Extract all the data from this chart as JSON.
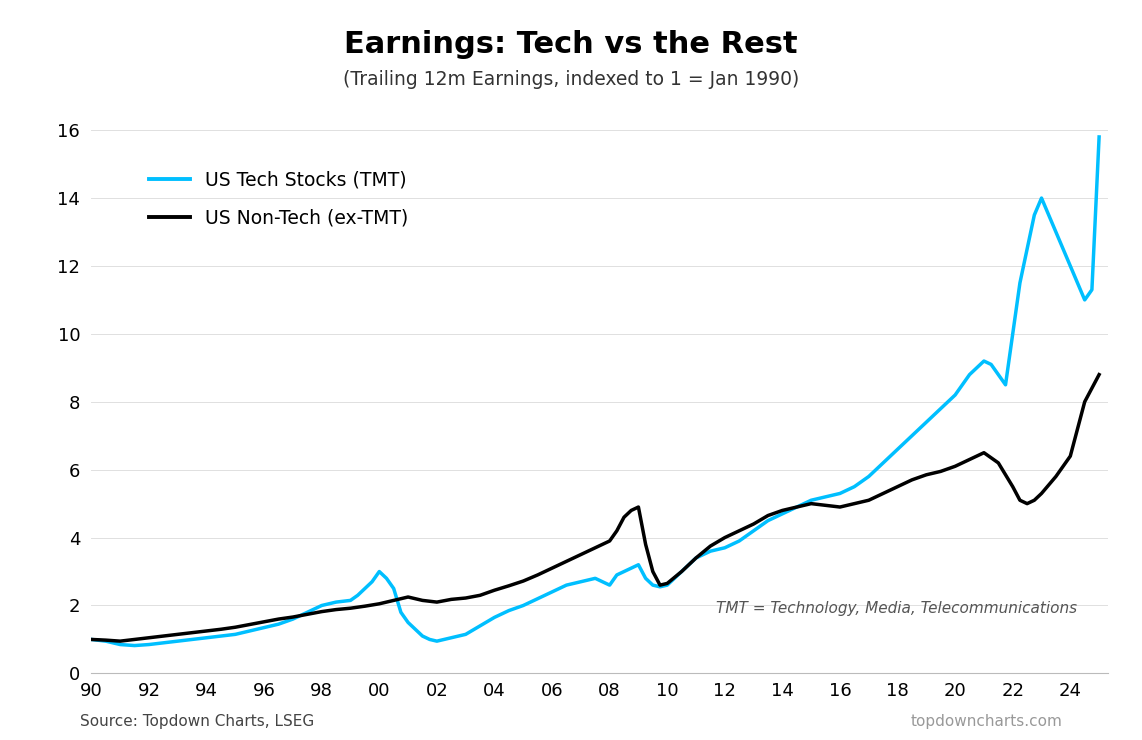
{
  "title": "Earnings: Tech vs the Rest",
  "subtitle": "(Trailing 12m Earnings, indexed to 1 = Jan 1990)",
  "source_left": "Source: Topdown Charts, LSEG",
  "source_right": "topdowncharts.com",
  "annotation": "TMT = Technology, Media, Telecommunications",
  "legend_tech": "US Tech Stocks (TMT)",
  "legend_nontech": "US Non-Tech (ex-TMT)",
  "color_tech": "#00BFFF",
  "color_nontech": "#000000",
  "ylim": [
    0,
    17
  ],
  "yticks": [
    0,
    2,
    4,
    6,
    8,
    10,
    12,
    14,
    16
  ],
  "xlim_start": 1990.0,
  "xlim_end": 2025.3,
  "xtick_labels": [
    "90",
    "92",
    "94",
    "96",
    "98",
    "00",
    "02",
    "04",
    "06",
    "08",
    "10",
    "12",
    "14",
    "16",
    "18",
    "20",
    "22",
    "24"
  ],
  "xtick_positions": [
    1990,
    1992,
    1994,
    1996,
    1998,
    2000,
    2002,
    2004,
    2006,
    2008,
    2010,
    2012,
    2014,
    2016,
    2018,
    2020,
    2022,
    2024
  ],
  "tech_x": [
    1990.0,
    1990.5,
    1991.0,
    1991.5,
    1992.0,
    1992.5,
    1993.0,
    1993.5,
    1994.0,
    1994.5,
    1995.0,
    1995.5,
    1996.0,
    1996.5,
    1997.0,
    1997.5,
    1998.0,
    1998.5,
    1999.0,
    1999.25,
    1999.5,
    1999.75,
    2000.0,
    2000.25,
    2000.5,
    2000.75,
    2001.0,
    2001.25,
    2001.5,
    2001.75,
    2002.0,
    2002.25,
    2002.5,
    2002.75,
    2003.0,
    2003.5,
    2004.0,
    2004.5,
    2005.0,
    2005.5,
    2006.0,
    2006.5,
    2007.0,
    2007.5,
    2008.0,
    2008.25,
    2008.5,
    2008.75,
    2009.0,
    2009.25,
    2009.5,
    2009.75,
    2010.0,
    2010.5,
    2011.0,
    2011.5,
    2012.0,
    2012.5,
    2013.0,
    2013.5,
    2014.0,
    2014.5,
    2015.0,
    2015.5,
    2016.0,
    2016.5,
    2017.0,
    2017.5,
    2018.0,
    2018.25,
    2018.5,
    2018.75,
    2019.0,
    2019.5,
    2020.0,
    2020.25,
    2020.5,
    2020.75,
    2021.0,
    2021.25,
    2021.5,
    2021.75,
    2022.0,
    2022.25,
    2022.5,
    2022.75,
    2023.0,
    2023.5,
    2024.0,
    2024.25,
    2024.5,
    2024.75,
    2025.0
  ],
  "tech_y": [
    1.0,
    0.95,
    0.85,
    0.82,
    0.85,
    0.9,
    0.95,
    1.0,
    1.05,
    1.1,
    1.15,
    1.25,
    1.35,
    1.45,
    1.6,
    1.8,
    2.0,
    2.1,
    2.15,
    2.3,
    2.5,
    2.7,
    3.0,
    2.8,
    2.5,
    1.8,
    1.5,
    1.3,
    1.1,
    1.0,
    0.95,
    1.0,
    1.05,
    1.1,
    1.15,
    1.4,
    1.65,
    1.85,
    2.0,
    2.2,
    2.4,
    2.6,
    2.7,
    2.8,
    2.6,
    2.9,
    3.0,
    3.1,
    3.2,
    2.8,
    2.6,
    2.55,
    2.6,
    3.0,
    3.4,
    3.6,
    3.7,
    3.9,
    4.2,
    4.5,
    4.7,
    4.9,
    5.1,
    5.2,
    5.3,
    5.5,
    5.8,
    6.2,
    6.6,
    6.8,
    7.0,
    7.2,
    7.4,
    7.8,
    8.2,
    8.5,
    8.8,
    9.0,
    9.2,
    9.1,
    8.8,
    8.5,
    10.0,
    11.5,
    12.5,
    13.5,
    14.0,
    13.0,
    12.0,
    11.5,
    11.0,
    11.3,
    15.8
  ],
  "nontech_x": [
    1990.0,
    1990.5,
    1991.0,
    1991.5,
    1992.0,
    1992.5,
    1993.0,
    1993.5,
    1994.0,
    1994.5,
    1995.0,
    1995.5,
    1996.0,
    1996.5,
    1997.0,
    1997.5,
    1998.0,
    1998.5,
    1999.0,
    1999.5,
    2000.0,
    2000.5,
    2001.0,
    2001.5,
    2002.0,
    2002.5,
    2003.0,
    2003.5,
    2004.0,
    2004.5,
    2005.0,
    2005.5,
    2006.0,
    2006.5,
    2007.0,
    2007.5,
    2008.0,
    2008.25,
    2008.5,
    2008.75,
    2009.0,
    2009.25,
    2009.5,
    2009.75,
    2010.0,
    2010.5,
    2011.0,
    2011.5,
    2012.0,
    2012.5,
    2013.0,
    2013.5,
    2014.0,
    2014.5,
    2015.0,
    2015.5,
    2016.0,
    2016.5,
    2017.0,
    2017.5,
    2018.0,
    2018.5,
    2019.0,
    2019.5,
    2020.0,
    2020.25,
    2020.5,
    2020.75,
    2021.0,
    2021.5,
    2022.0,
    2022.25,
    2022.5,
    2022.75,
    2023.0,
    2023.5,
    2024.0,
    2024.5,
    2025.0
  ],
  "nontech_y": [
    1.0,
    0.98,
    0.95,
    1.0,
    1.05,
    1.1,
    1.15,
    1.2,
    1.25,
    1.3,
    1.36,
    1.44,
    1.52,
    1.6,
    1.66,
    1.74,
    1.82,
    1.88,
    1.92,
    1.98,
    2.05,
    2.15,
    2.25,
    2.15,
    2.1,
    2.18,
    2.22,
    2.3,
    2.45,
    2.58,
    2.72,
    2.9,
    3.1,
    3.3,
    3.5,
    3.7,
    3.9,
    4.2,
    4.6,
    4.8,
    4.9,
    3.8,
    3.0,
    2.6,
    2.65,
    3.0,
    3.4,
    3.75,
    4.0,
    4.2,
    4.4,
    4.65,
    4.8,
    4.9,
    5.0,
    4.95,
    4.9,
    5.0,
    5.1,
    5.3,
    5.5,
    5.7,
    5.85,
    5.95,
    6.1,
    6.2,
    6.3,
    6.4,
    6.5,
    6.2,
    5.5,
    5.1,
    5.0,
    5.1,
    5.3,
    5.8,
    6.4,
    8.0,
    8.8
  ]
}
